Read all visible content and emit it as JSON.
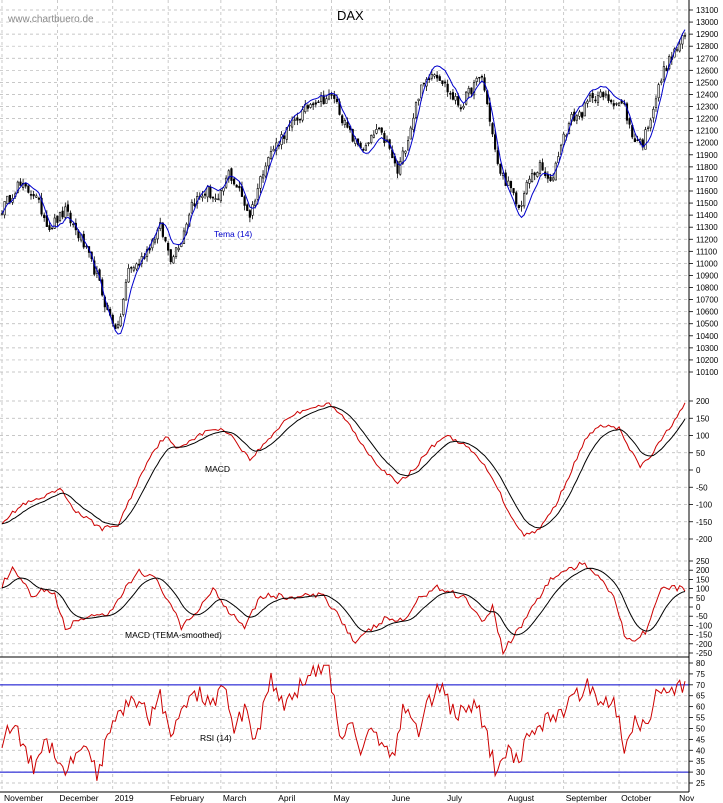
{
  "chart_data": [
    {
      "type": "candlestick",
      "title": "DAX",
      "watermark": "www.chartbuero.de",
      "ylim": [
        10100,
        13100
      ],
      "y_ticks": [
        "13100",
        "13000",
        "12900",
        "12800",
        "12700",
        "12600",
        "12500",
        "12400",
        "12300",
        "12200",
        "12100",
        "12000",
        "11900",
        "11800",
        "11700",
        "11600",
        "11500",
        "11400",
        "11300",
        "11200",
        "11100",
        "11000",
        "10900",
        "10800",
        "10700",
        "10600",
        "10500",
        "10400",
        "10300",
        "10200",
        "10100"
      ],
      "indicator_label": "Tema (14)",
      "colors": {
        "price": "#000000",
        "tema": "#0000cc"
      },
      "price_keypoints": [
        {
          "x": 0,
          "y": 11450
        },
        {
          "x": 6,
          "y": 11650
        },
        {
          "x": 12,
          "y": 11580
        },
        {
          "x": 18,
          "y": 11300
        },
        {
          "x": 24,
          "y": 11430
        },
        {
          "x": 30,
          "y": 11200
        },
        {
          "x": 36,
          "y": 10900
        },
        {
          "x": 40,
          "y": 10600
        },
        {
          "x": 44,
          "y": 10450
        },
        {
          "x": 48,
          "y": 10950
        },
        {
          "x": 52,
          "y": 11000
        },
        {
          "x": 56,
          "y": 11150
        },
        {
          "x": 60,
          "y": 11300
        },
        {
          "x": 64,
          "y": 11050
        },
        {
          "x": 68,
          "y": 11200
        },
        {
          "x": 72,
          "y": 11500
        },
        {
          "x": 78,
          "y": 11600
        },
        {
          "x": 82,
          "y": 11500
        },
        {
          "x": 86,
          "y": 11750
        },
        {
          "x": 90,
          "y": 11600
        },
        {
          "x": 94,
          "y": 11400
        },
        {
          "x": 100,
          "y": 11850
        },
        {
          "x": 106,
          "y": 12050
        },
        {
          "x": 112,
          "y": 12200
        },
        {
          "x": 118,
          "y": 12350
        },
        {
          "x": 126,
          "y": 12380
        },
        {
          "x": 130,
          "y": 12150
        },
        {
          "x": 134,
          "y": 12000
        },
        {
          "x": 138,
          "y": 11950
        },
        {
          "x": 142,
          "y": 12100
        },
        {
          "x": 146,
          "y": 12000
        },
        {
          "x": 150,
          "y": 11750
        },
        {
          "x": 154,
          "y": 12050
        },
        {
          "x": 158,
          "y": 12400
        },
        {
          "x": 163,
          "y": 12600
        },
        {
          "x": 166,
          "y": 12550
        },
        {
          "x": 170,
          "y": 12400
        },
        {
          "x": 174,
          "y": 12300
        },
        {
          "x": 178,
          "y": 12450
        },
        {
          "x": 182,
          "y": 12550
        },
        {
          "x": 185,
          "y": 12200
        },
        {
          "x": 188,
          "y": 11800
        },
        {
          "x": 192,
          "y": 11650
        },
        {
          "x": 196,
          "y": 11450
        },
        {
          "x": 200,
          "y": 11700
        },
        {
          "x": 204,
          "y": 11800
        },
        {
          "x": 208,
          "y": 11650
        },
        {
          "x": 212,
          "y": 12000
        },
        {
          "x": 216,
          "y": 12200
        },
        {
          "x": 220,
          "y": 12250
        },
        {
          "x": 224,
          "y": 12400
        },
        {
          "x": 228,
          "y": 12380
        },
        {
          "x": 232,
          "y": 12350
        },
        {
          "x": 236,
          "y": 12300
        },
        {
          "x": 239,
          "y": 12050
        },
        {
          "x": 243,
          "y": 12000
        },
        {
          "x": 247,
          "y": 12300
        },
        {
          "x": 251,
          "y": 12600
        },
        {
          "x": 255,
          "y": 12750
        },
        {
          "x": 259,
          "y": 12880
        }
      ]
    },
    {
      "type": "line",
      "label": "MACD",
      "ylim": [
        -200,
        200
      ],
      "y_ticks": [
        "200",
        "150",
        "100",
        "50",
        "0",
        "-50",
        "-100",
        "-150",
        "-200"
      ],
      "series_colors": [
        "#cc0000",
        "#000000"
      ],
      "macd_keypoints": [
        {
          "x": 0,
          "y": -150
        },
        {
          "x": 8,
          "y": -100
        },
        {
          "x": 16,
          "y": -80
        },
        {
          "x": 22,
          "y": -55
        },
        {
          "x": 28,
          "y": -120
        },
        {
          "x": 34,
          "y": -150
        },
        {
          "x": 38,
          "y": -170
        },
        {
          "x": 44,
          "y": -160
        },
        {
          "x": 50,
          "y": -60
        },
        {
          "x": 56,
          "y": 40
        },
        {
          "x": 62,
          "y": 100
        },
        {
          "x": 66,
          "y": 60
        },
        {
          "x": 72,
          "y": 90
        },
        {
          "x": 80,
          "y": 120
        },
        {
          "x": 86,
          "y": 110
        },
        {
          "x": 90,
          "y": 70
        },
        {
          "x": 94,
          "y": 30
        },
        {
          "x": 100,
          "y": 80
        },
        {
          "x": 108,
          "y": 150
        },
        {
          "x": 116,
          "y": 180
        },
        {
          "x": 124,
          "y": 190
        },
        {
          "x": 130,
          "y": 150
        },
        {
          "x": 136,
          "y": 80
        },
        {
          "x": 142,
          "y": 20
        },
        {
          "x": 150,
          "y": -40
        },
        {
          "x": 156,
          "y": 0
        },
        {
          "x": 162,
          "y": 60
        },
        {
          "x": 168,
          "y": 100
        },
        {
          "x": 174,
          "y": 80
        },
        {
          "x": 180,
          "y": 40
        },
        {
          "x": 186,
          "y": -20
        },
        {
          "x": 192,
          "y": -120
        },
        {
          "x": 198,
          "y": -190
        },
        {
          "x": 204,
          "y": -170
        },
        {
          "x": 210,
          "y": -100
        },
        {
          "x": 216,
          "y": 0
        },
        {
          "x": 222,
          "y": 100
        },
        {
          "x": 228,
          "y": 130
        },
        {
          "x": 234,
          "y": 120
        },
        {
          "x": 238,
          "y": 60
        },
        {
          "x": 242,
          "y": 10
        },
        {
          "x": 246,
          "y": 40
        },
        {
          "x": 252,
          "y": 110
        },
        {
          "x": 259,
          "y": 190
        }
      ]
    },
    {
      "type": "line",
      "label": "MACD (TEMA-smoothed)",
      "ylim": [
        -250,
        250
      ],
      "y_ticks": [
        "250",
        "200",
        "150",
        "100",
        "50",
        "0",
        "-50",
        "-100",
        "-150",
        "-200",
        "-250"
      ],
      "series_colors": [
        "#cc0000",
        "#000000"
      ],
      "macd_tema_keypoints": [
        {
          "x": 0,
          "y": 120
        },
        {
          "x": 4,
          "y": 200
        },
        {
          "x": 8,
          "y": 130
        },
        {
          "x": 12,
          "y": 40
        },
        {
          "x": 16,
          "y": 100
        },
        {
          "x": 20,
          "y": 60
        },
        {
          "x": 24,
          "y": -120
        },
        {
          "x": 28,
          "y": -80
        },
        {
          "x": 34,
          "y": -40
        },
        {
          "x": 40,
          "y": -60
        },
        {
          "x": 46,
          "y": 80
        },
        {
          "x": 52,
          "y": 200
        },
        {
          "x": 58,
          "y": 150
        },
        {
          "x": 64,
          "y": 20
        },
        {
          "x": 68,
          "y": -120
        },
        {
          "x": 74,
          "y": -20
        },
        {
          "x": 80,
          "y": 100
        },
        {
          "x": 86,
          "y": -20
        },
        {
          "x": 92,
          "y": -100
        },
        {
          "x": 98,
          "y": 60
        },
        {
          "x": 104,
          "y": 60
        },
        {
          "x": 110,
          "y": 50
        },
        {
          "x": 116,
          "y": 60
        },
        {
          "x": 122,
          "y": 60
        },
        {
          "x": 128,
          "y": -50
        },
        {
          "x": 134,
          "y": -200
        },
        {
          "x": 140,
          "y": -120
        },
        {
          "x": 146,
          "y": -60
        },
        {
          "x": 152,
          "y": -80
        },
        {
          "x": 158,
          "y": 40
        },
        {
          "x": 164,
          "y": 110
        },
        {
          "x": 170,
          "y": 80
        },
        {
          "x": 176,
          "y": 50
        },
        {
          "x": 182,
          "y": -80
        },
        {
          "x": 186,
          "y": 0
        },
        {
          "x": 190,
          "y": -240
        },
        {
          "x": 196,
          "y": -120
        },
        {
          "x": 202,
          "y": 20
        },
        {
          "x": 208,
          "y": 150
        },
        {
          "x": 214,
          "y": 200
        },
        {
          "x": 220,
          "y": 230
        },
        {
          "x": 226,
          "y": 180
        },
        {
          "x": 232,
          "y": 60
        },
        {
          "x": 236,
          "y": -150
        },
        {
          "x": 240,
          "y": -180
        },
        {
          "x": 244,
          "y": -130
        },
        {
          "x": 250,
          "y": 100
        },
        {
          "x": 259,
          "y": 100
        }
      ]
    },
    {
      "type": "line",
      "label": "RSI (14)",
      "ylim": [
        25,
        80
      ],
      "y_ticks": [
        "80",
        "75",
        "70",
        "65",
        "60",
        "55",
        "50",
        "45",
        "40",
        "35",
        "30",
        "25"
      ],
      "reference_lines": [
        70,
        30
      ],
      "series_colors": [
        "#cc0000"
      ],
      "rsi_keypoints": [
        {
          "x": 0,
          "y": 45
        },
        {
          "x": 4,
          "y": 52
        },
        {
          "x": 8,
          "y": 42
        },
        {
          "x": 12,
          "y": 32
        },
        {
          "x": 16,
          "y": 45
        },
        {
          "x": 20,
          "y": 40
        },
        {
          "x": 24,
          "y": 30
        },
        {
          "x": 28,
          "y": 38
        },
        {
          "x": 32,
          "y": 44
        },
        {
          "x": 36,
          "y": 28
        },
        {
          "x": 40,
          "y": 45
        },
        {
          "x": 46,
          "y": 60
        },
        {
          "x": 52,
          "y": 62
        },
        {
          "x": 56,
          "y": 55
        },
        {
          "x": 60,
          "y": 66
        },
        {
          "x": 64,
          "y": 45
        },
        {
          "x": 70,
          "y": 62
        },
        {
          "x": 76,
          "y": 66
        },
        {
          "x": 80,
          "y": 60
        },
        {
          "x": 84,
          "y": 70
        },
        {
          "x": 88,
          "y": 48
        },
        {
          "x": 92,
          "y": 60
        },
        {
          "x": 96,
          "y": 44
        },
        {
          "x": 102,
          "y": 72
        },
        {
          "x": 108,
          "y": 60
        },
        {
          "x": 114,
          "y": 72
        },
        {
          "x": 120,
          "y": 76
        },
        {
          "x": 124,
          "y": 78
        },
        {
          "x": 128,
          "y": 45
        },
        {
          "x": 132,
          "y": 55
        },
        {
          "x": 136,
          "y": 40
        },
        {
          "x": 140,
          "y": 50
        },
        {
          "x": 144,
          "y": 45
        },
        {
          "x": 148,
          "y": 36
        },
        {
          "x": 152,
          "y": 58
        },
        {
          "x": 158,
          "y": 50
        },
        {
          "x": 162,
          "y": 62
        },
        {
          "x": 166,
          "y": 70
        },
        {
          "x": 170,
          "y": 60
        },
        {
          "x": 176,
          "y": 55
        },
        {
          "x": 180,
          "y": 62
        },
        {
          "x": 184,
          "y": 45
        },
        {
          "x": 188,
          "y": 28
        },
        {
          "x": 192,
          "y": 40
        },
        {
          "x": 196,
          "y": 35
        },
        {
          "x": 200,
          "y": 48
        },
        {
          "x": 204,
          "y": 52
        },
        {
          "x": 210,
          "y": 56
        },
        {
          "x": 216,
          "y": 62
        },
        {
          "x": 222,
          "y": 70
        },
        {
          "x": 228,
          "y": 62
        },
        {
          "x": 232,
          "y": 65
        },
        {
          "x": 236,
          "y": 40
        },
        {
          "x": 240,
          "y": 55
        },
        {
          "x": 244,
          "y": 50
        },
        {
          "x": 248,
          "y": 65
        },
        {
          "x": 254,
          "y": 66
        },
        {
          "x": 259,
          "y": 71
        }
      ]
    }
  ],
  "x_axis": {
    "months": [
      "November",
      "December",
      "2019",
      "February",
      "March",
      "April",
      "May",
      "June",
      "July",
      "August",
      "September",
      "October",
      "Nov"
    ]
  }
}
